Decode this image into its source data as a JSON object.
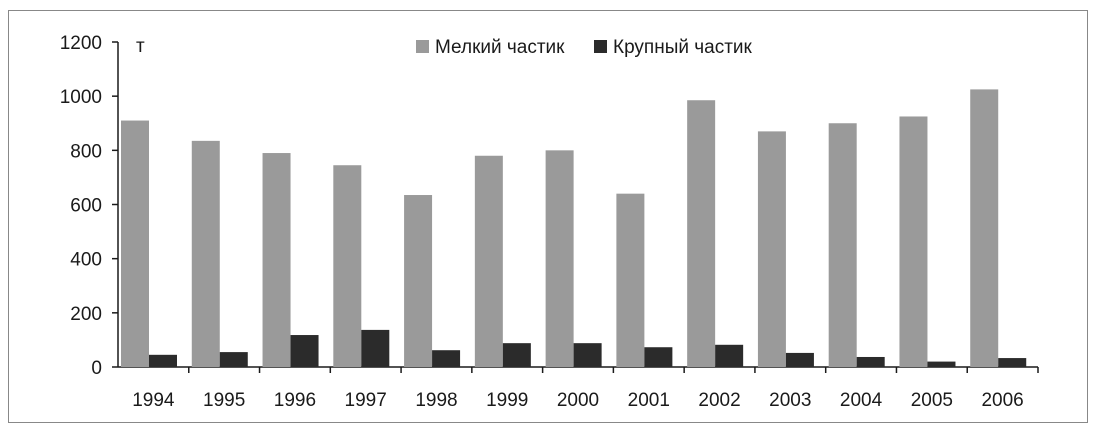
{
  "chart_data": {
    "type": "bar",
    "title": "",
    "xlabel": "",
    "ylabel": "т",
    "ylim": [
      0,
      1200
    ],
    "yticks": [
      0,
      200,
      400,
      600,
      800,
      1000,
      1200
    ],
    "grid": false,
    "legend_position": "top-center",
    "categories": [
      "1994",
      "1995",
      "1996",
      "1997",
      "1998",
      "1999",
      "2000",
      "2001",
      "2002",
      "2003",
      "2004",
      "2005",
      "2006"
    ],
    "series": [
      {
        "name": "Мелкий частик",
        "color": "#9a9a9a",
        "values": [
          910,
          835,
          790,
          745,
          635,
          780,
          800,
          640,
          985,
          870,
          900,
          925,
          1025
        ]
      },
      {
        "name": "Крупный частик",
        "color": "#2b2b2b",
        "values": [
          45,
          55,
          118,
          137,
          62,
          88,
          88,
          73,
          82,
          52,
          37,
          20,
          33
        ]
      }
    ]
  }
}
